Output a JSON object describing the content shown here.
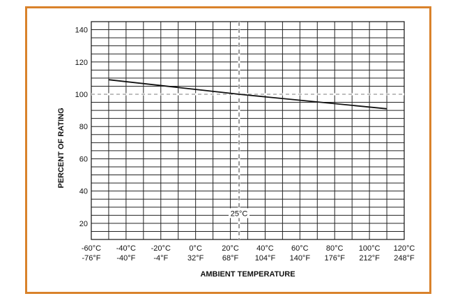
{
  "frame": {
    "border_color": "#d9822b"
  },
  "chart_data": {
    "type": "line",
    "xlabel": "AMBIENT TEMPERATURE",
    "ylabel": "PERCENT OF RATING",
    "xlim": [
      -60,
      120
    ],
    "ylim": [
      10,
      145
    ],
    "x_ticks": [
      -60,
      -40,
      -20,
      0,
      20,
      40,
      60,
      80,
      100,
      120
    ],
    "x_tick_labels_celsius": [
      "-60°C",
      "-40°C",
      "-20°C",
      "0°C",
      "20°C",
      "40°C",
      "60°C",
      "80°C",
      "100°C",
      "120°C"
    ],
    "x_tick_labels_fahrenheit": [
      "-76°F",
      "-40°F",
      "-4°F",
      "32°F",
      "68°F",
      "104°F",
      "140°F",
      "176°F",
      "212°F",
      "248°F"
    ],
    "y_ticks": [
      20,
      40,
      60,
      80,
      100,
      120,
      140
    ],
    "grid": true,
    "series": [
      {
        "x": [
          -50,
          25,
          110
        ],
        "y": [
          109,
          100,
          91
        ],
        "color": "#111111"
      }
    ],
    "reference_lines": [
      {
        "axis": "x",
        "value": 25,
        "label": "25°C",
        "label_y": 25,
        "style": "dashed",
        "color": "#555555"
      },
      {
        "axis": "y",
        "value": 100,
        "style": "dashed",
        "color": "#999999"
      }
    ]
  }
}
